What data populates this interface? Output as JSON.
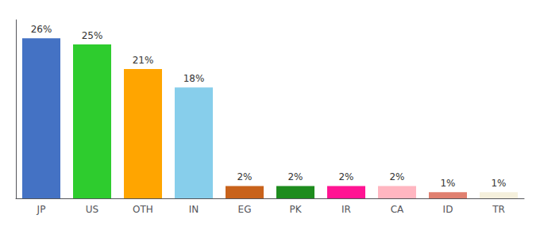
{
  "chart_data": {
    "type": "bar",
    "categories": [
      "JP",
      "US",
      "OTH",
      "IN",
      "EG",
      "PK",
      "IR",
      "CA",
      "ID",
      "TR"
    ],
    "values": [
      26,
      25,
      21,
      18,
      2,
      2,
      2,
      2,
      1,
      1
    ],
    "value_labels": [
      "26%",
      "25%",
      "21%",
      "18%",
      "2%",
      "2%",
      "2%",
      "2%",
      "1%",
      "1%"
    ],
    "colors": [
      "#4472c4",
      "#2ecc2e",
      "#ffa500",
      "#87ceeb",
      "#c8621b",
      "#1e8c1e",
      "#ff1493",
      "#ffb6c1",
      "#e08070",
      "#f5f0dc"
    ],
    "ylim": [
      0,
      29
    ],
    "grid": false,
    "data_labels": true,
    "tick_labels": "x"
  }
}
